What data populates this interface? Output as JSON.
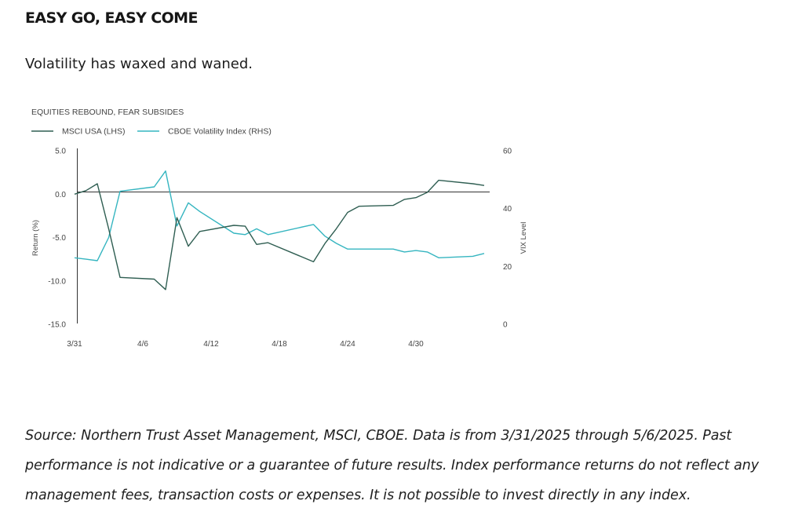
{
  "heading": "EASY GO, EASY COME",
  "subheading": "Volatility has waxed and waned.",
  "source": "Source: Northern Trust Asset Management, MSCI, CBOE. Data is from 3/31/2025 through 5/6/2025. Past performance is not indicative or a guarantee of future results. Index performance returns do not reflect any management fees, transaction costs or expenses. It is not possible to invest directly in any index.",
  "colors": {
    "msci": "#2f5e52",
    "vix": "#35b5c0",
    "axis": "#333333",
    "text": "#444444"
  },
  "chart_data": {
    "type": "line",
    "title": "EQUITIES REBOUND, FEAR SUBSIDES",
    "legend": [
      "MSCI USA (LHS)",
      "CBOE Volatility Index (RHS)"
    ],
    "legend_placement": "top-left",
    "ylabel_left": "Return (%)",
    "ylabel_right": "VIX Level",
    "ylim_left": [
      -15,
      5
    ],
    "ylim_right": [
      0,
      60
    ],
    "yticks_left": [
      "5.0",
      "0.0",
      "-5.0",
      "-10.0",
      "-15.0"
    ],
    "yticks_right": [
      "60",
      "40",
      "20",
      "0"
    ],
    "xticks": [
      "3/31",
      "4/6",
      "4/12",
      "4/18",
      "4/24",
      "4/30"
    ],
    "xlim": [
      "3/31",
      "5/6"
    ],
    "grid": false,
    "series": [
      {
        "name": "MSCI USA (LHS)",
        "axis": "left",
        "x": [
          "3/31",
          "4/1",
          "4/2",
          "4/3",
          "4/4",
          "4/7",
          "4/8",
          "4/9",
          "4/10",
          "4/11",
          "4/14",
          "4/15",
          "4/16",
          "4/17",
          "4/21",
          "4/22",
          "4/23",
          "4/24",
          "4/25",
          "4/28",
          "4/29",
          "4/30",
          "5/1",
          "5/2",
          "5/5",
          "5/6"
        ],
        "values": [
          0.0,
          0.4,
          1.2,
          -4.0,
          -9.6,
          -9.8,
          -11.0,
          -2.7,
          -6.0,
          -4.3,
          -3.6,
          -3.7,
          -5.8,
          -5.6,
          -7.8,
          -5.7,
          -4.0,
          -2.1,
          -1.4,
          -1.3,
          -0.6,
          -0.4,
          0.2,
          1.6,
          1.2,
          1.0
        ]
      },
      {
        "name": "CBOE Volatility Index (RHS)",
        "axis": "right",
        "x": [
          "3/31",
          "4/1",
          "4/2",
          "4/3",
          "4/4",
          "4/7",
          "4/8",
          "4/9",
          "4/10",
          "4/11",
          "4/14",
          "4/15",
          "4/16",
          "4/17",
          "4/21",
          "4/22",
          "4/23",
          "4/24",
          "4/25",
          "4/28",
          "4/29",
          "4/30",
          "5/1",
          "5/2",
          "5/5",
          "5/6"
        ],
        "values": [
          23.0,
          22.5,
          22.0,
          30.0,
          46.0,
          47.5,
          53.0,
          34.0,
          42.0,
          39.0,
          31.5,
          31.0,
          33.0,
          31.0,
          34.5,
          30.5,
          28.0,
          26.0,
          26.0,
          26.0,
          25.0,
          25.5,
          25.0,
          23.0,
          23.5,
          24.5
        ]
      }
    ]
  }
}
